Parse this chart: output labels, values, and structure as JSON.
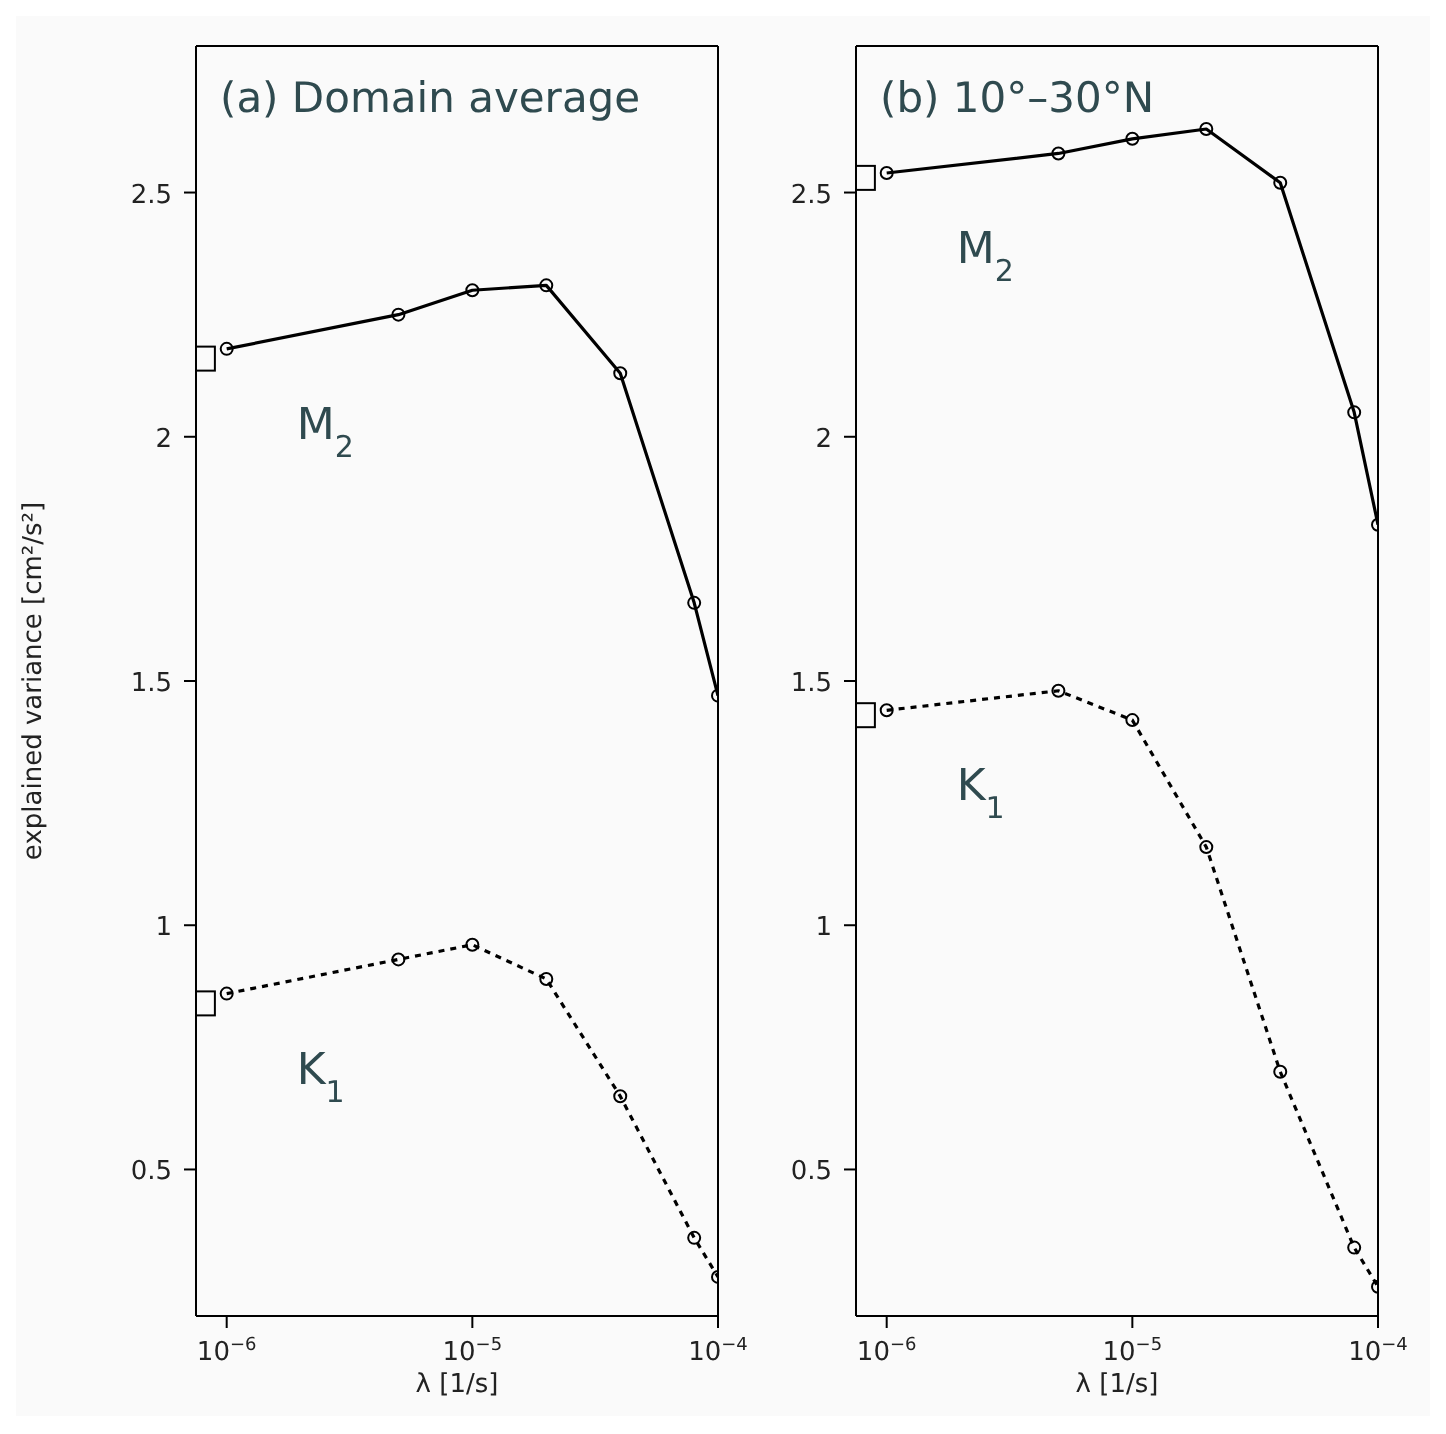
{
  "chart_data": [
    {
      "type": "line",
      "title": "(a) Domain average",
      "xlabel": "λ [1/s]",
      "ylabel": "explained variance [cm²/s²]",
      "log": "x",
      "grid": false,
      "xlim": [
        7.5e-07,
        0.0001
      ],
      "ylim": [
        0.2,
        2.8
      ],
      "xticks": [
        {
          "value": 1e-06,
          "label": "10$^{−6}$"
        },
        {
          "value": 1e-05,
          "label": "10$^{−5}$"
        },
        {
          "value": 0.0001,
          "label": "10$^{−4}$"
        }
      ],
      "yticks": [
        0.5,
        1,
        1.5,
        2,
        2.5
      ],
      "series": [
        {
          "name": "M$_{2}$",
          "color": "#000000",
          "marker": "circle",
          "line_style": "solid",
          "x": [
            1e-06,
            5e-06,
            1e-05,
            2e-05,
            4e-05,
            8e-05,
            0.0001
          ],
          "values": [
            2.18,
            2.25,
            2.3,
            2.31,
            2.13,
            1.66,
            1.47
          ]
        },
        {
          "name": "K$_{1}$",
          "color": "#000000",
          "marker": "circle",
          "line_style": "dotted",
          "x": [
            1e-06,
            5e-06,
            1e-05,
            2e-05,
            4e-05,
            8e-05,
            0.0001
          ],
          "values": [
            0.86,
            0.93,
            0.96,
            0.89,
            0.65,
            0.36,
            0.28
          ]
        },
        {
          "type": "scatter",
          "color": "#000000",
          "marker": "square",
          "x": [
            8e-07,
            8e-07
          ],
          "values": [
            2.16,
            0.84
          ]
        }
      ]
    },
    {
      "type": "line",
      "title": "(b) 10°–30°N",
      "xlabel": "λ [1/s]",
      "log": "x",
      "grid": false,
      "xlim": [
        7.5e-07,
        0.0001
      ],
      "ylim": [
        0.2,
        2.8
      ],
      "xticks": [
        {
          "value": 1e-06,
          "label": "10$^{−6}$"
        },
        {
          "value": 1e-05,
          "label": "10$^{−5}$"
        },
        {
          "value": 0.0001,
          "label": "10$^{−4}$"
        }
      ],
      "yticks": [
        0.5,
        1,
        1.5,
        2,
        2.5
      ],
      "series": [
        {
          "name": "M$_{2}$",
          "color": "#000000",
          "marker": "circle",
          "line_style": "solid",
          "x": [
            1e-06,
            5e-06,
            1e-05,
            2e-05,
            4e-05,
            8e-05,
            0.0001
          ],
          "values": [
            2.54,
            2.58,
            2.61,
            2.63,
            2.52,
            2.05,
            1.82
          ]
        },
        {
          "name": "K$_{1}$",
          "color": "#000000",
          "marker": "circle",
          "line_style": "dotted",
          "x": [
            1e-06,
            5e-06,
            1e-05,
            2e-05,
            4e-05,
            8e-05,
            0.0001
          ],
          "values": [
            1.44,
            1.48,
            1.42,
            1.16,
            0.7,
            0.34,
            0.26
          ]
        },
        {
          "type": "scatter",
          "color": "#000000",
          "marker": "square",
          "x": [
            8e-07,
            8e-07
          ],
          "values": [
            2.53,
            1.43
          ]
        }
      ]
    }
  ]
}
